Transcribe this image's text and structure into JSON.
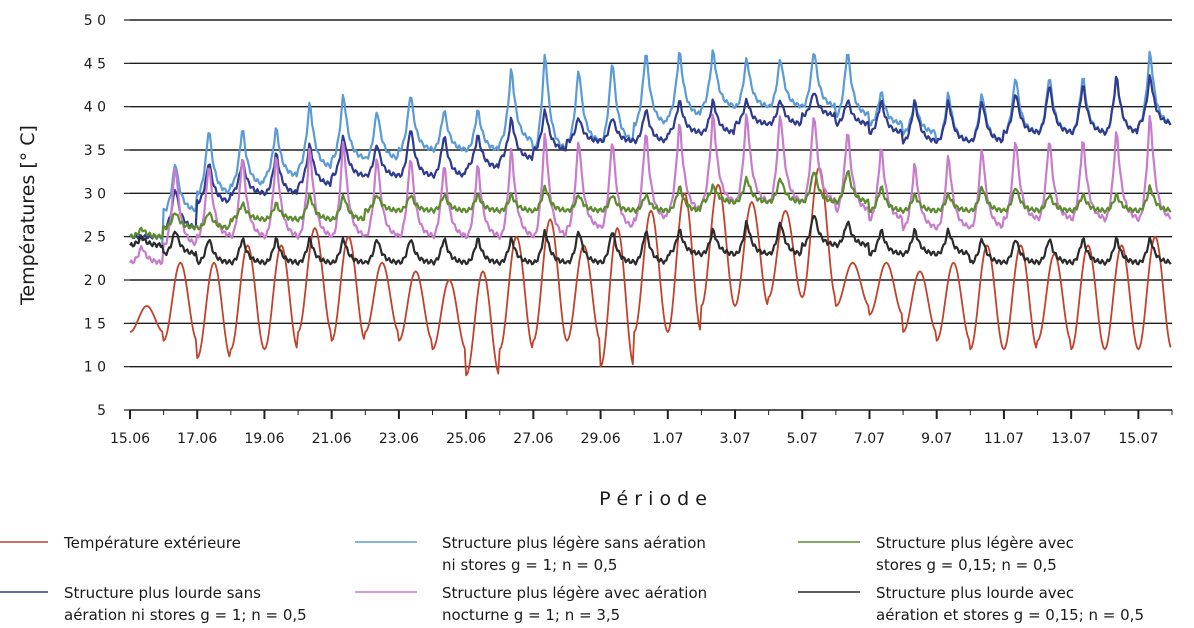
{
  "chart_data": {
    "type": "line",
    "xlabel": "P é r i o d e",
    "ylabel": "Températures [° C]",
    "ylim": [
      5,
      50
    ],
    "yticks": [
      "5",
      "1 0",
      "1 5",
      "2 0",
      "2 5",
      "3 0",
      "3 5",
      "4 0",
      "4 5",
      "5 0"
    ],
    "yticks_values": [
      5,
      10,
      15,
      20,
      25,
      30,
      35,
      40,
      45,
      50
    ],
    "x_start_label": "15.06",
    "x_days": 31,
    "xticks": [
      {
        "label": "15.06",
        "day": 0
      },
      {
        "label": "17.06",
        "day": 2
      },
      {
        "label": "19.06",
        "day": 4
      },
      {
        "label": "21.06",
        "day": 6
      },
      {
        "label": "23.06",
        "day": 8
      },
      {
        "label": "25.06",
        "day": 10
      },
      {
        "label": "27.06",
        "day": 12
      },
      {
        "label": "29.06",
        "day": 14
      },
      {
        "label": "1.07",
        "day": 16
      },
      {
        "label": "3.07",
        "day": 18
      },
      {
        "label": "5.07",
        "day": 20
      },
      {
        "label": "7.07",
        "day": 22
      },
      {
        "label": "9.07",
        "day": 24
      },
      {
        "label": "11.07",
        "day": 26
      },
      {
        "label": "13.07",
        "day": 28
      },
      {
        "label": "15.07",
        "day": 30
      }
    ],
    "grid": true,
    "legend_position": "bottom",
    "series": [
      {
        "name": "Température extérieure",
        "color": "#c0432d",
        "daily_min": [
          14,
          13,
          11,
          12,
          12,
          14,
          13,
          14,
          13,
          12,
          9,
          12,
          13,
          13,
          10,
          14,
          14,
          17,
          17,
          18,
          18,
          17,
          16,
          14,
          13,
          12,
          12,
          13,
          12,
          12,
          12
        ],
        "daily_max": [
          17,
          22,
          22,
          24,
          24,
          26,
          25,
          22,
          21,
          20,
          21,
          25,
          27,
          24,
          26,
          28,
          30,
          31,
          29,
          28,
          33,
          22,
          22,
          21,
          22,
          24,
          24,
          23,
          24,
          24,
          25
        ]
      },
      {
        "name": "Structure plus légère sans aération ni stores g = 1; n = 0,5",
        "color": "#5b9bd5",
        "daily_min": [
          24,
          28,
          30,
          31,
          32,
          33,
          34,
          34,
          35,
          35,
          35,
          36,
          35,
          36,
          36,
          38,
          39,
          40,
          40,
          40,
          40,
          39,
          38,
          37,
          36,
          36,
          37,
          37,
          37,
          37,
          38
        ],
        "daily_max": [
          25,
          34,
          38,
          38,
          38,
          41,
          42,
          40,
          42,
          40,
          40,
          45,
          47,
          45,
          46,
          47,
          47,
          47,
          46,
          46,
          47,
          47,
          42,
          41,
          42,
          42,
          44,
          44,
          44,
          44,
          47
        ]
      },
      {
        "name": "Structure plus lourde sans aération ni stores g = 1; n = 0,5",
        "color": "#2e3a8c",
        "daily_min": [
          25,
          26,
          29,
          30,
          30,
          31,
          32,
          32,
          32,
          32,
          33,
          34,
          35,
          36,
          36,
          36,
          37,
          37,
          38,
          38,
          39,
          38,
          37,
          36,
          36,
          36,
          37,
          37,
          37,
          37,
          38
        ],
        "daily_max": [
          25,
          31,
          34,
          34,
          35,
          36,
          37,
          36,
          38,
          37,
          37,
          39,
          40,
          39,
          39,
          40,
          41,
          41,
          41,
          41,
          42,
          41,
          41,
          41,
          41,
          41,
          42,
          43,
          43,
          44,
          44
        ]
      },
      {
        "name": "Structure plus légère avec aération nocturne g = 1; n = 3,5",
        "color": "#c77ccc",
        "daily_min": [
          22,
          24,
          25,
          25,
          25,
          25,
          25,
          25,
          25,
          25,
          25,
          25,
          25,
          26,
          26,
          27,
          28,
          29,
          29,
          29,
          29,
          28,
          27,
          26,
          26,
          26,
          27,
          27,
          27,
          27,
          27
        ],
        "daily_max": [
          24,
          34,
          34,
          35,
          35,
          36,
          37,
          35,
          35,
          34,
          34,
          36,
          38,
          37,
          37,
          38,
          39,
          40,
          40,
          40,
          40,
          38,
          36,
          34,
          35,
          36,
          37,
          37,
          37,
          38,
          40
        ]
      },
      {
        "name": "Structure plus légère avec stores g = 0,15; n = 0,5",
        "color": "#5c8c2e",
        "daily_min": [
          25,
          26,
          26,
          27,
          27,
          27,
          27,
          28,
          28,
          28,
          28,
          28,
          28,
          28,
          28,
          28,
          28,
          29,
          29,
          29,
          29,
          29,
          28,
          28,
          28,
          28,
          28,
          28,
          28,
          28,
          28
        ],
        "daily_max": [
          26,
          28,
          28,
          29,
          29,
          30,
          30,
          30,
          30,
          30,
          30,
          30,
          31,
          30,
          30,
          30,
          31,
          31,
          32,
          32,
          33,
          33,
          31,
          30,
          30,
          31,
          31,
          30,
          30,
          30,
          31
        ]
      },
      {
        "name": "Structure plus lourde avec aération et stores g = 0,15; n = 0,5",
        "color": "#2b2b2b",
        "daily_min": [
          24,
          23,
          22,
          22,
          22,
          22,
          22,
          22,
          22,
          22,
          22,
          22,
          22,
          22,
          22,
          22,
          23,
          23,
          23,
          23,
          24,
          24,
          23,
          23,
          23,
          22,
          22,
          22,
          22,
          22,
          22
        ],
        "daily_max": [
          25,
          26,
          25,
          25,
          25,
          25,
          25,
          25,
          25,
          25,
          25,
          25,
          26,
          26,
          26,
          26,
          26,
          26,
          27,
          27,
          28,
          27,
          26,
          26,
          26,
          25,
          25,
          25,
          25,
          25,
          25
        ]
      }
    ]
  }
}
